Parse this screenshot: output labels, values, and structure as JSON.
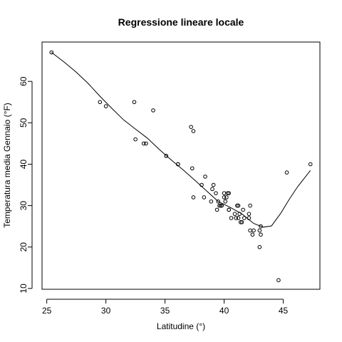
{
  "chart_data": {
    "type": "scatter",
    "title": "Regressione lineare locale",
    "xlabel": "Latitudine (°)",
    "ylabel": "Temperatura media Gennaio (°F)",
    "xlim": [
      24.6,
      48.1
    ],
    "ylim": [
      9.8,
      69.5
    ],
    "xticks": [
      25,
      30,
      35,
      40,
      45
    ],
    "yticks": [
      10,
      20,
      30,
      40,
      50,
      60
    ],
    "points": [
      [
        25.4,
        67
      ],
      [
        29.5,
        55
      ],
      [
        30.0,
        54
      ],
      [
        32.4,
        55
      ],
      [
        32.5,
        46
      ],
      [
        33.2,
        45
      ],
      [
        33.4,
        45
      ],
      [
        34.0,
        53
      ],
      [
        35.1,
        42
      ],
      [
        35.1,
        42
      ],
      [
        36.1,
        40
      ],
      [
        36.1,
        40
      ],
      [
        37.2,
        49
      ],
      [
        37.4,
        48
      ],
      [
        37.3,
        39
      ],
      [
        37.4,
        32
      ],
      [
        38.1,
        35
      ],
      [
        38.4,
        37
      ],
      [
        38.3,
        32
      ],
      [
        38.9,
        31
      ],
      [
        39.0,
        34
      ],
      [
        39.1,
        35
      ],
      [
        39.3,
        33
      ],
      [
        39.6,
        30
      ],
      [
        39.4,
        29
      ],
      [
        39.5,
        31
      ],
      [
        39.7,
        30
      ],
      [
        39.8,
        30
      ],
      [
        40.0,
        33
      ],
      [
        40.0,
        32
      ],
      [
        40.2,
        32
      ],
      [
        40.3,
        33
      ],
      [
        40.4,
        33
      ],
      [
        40.1,
        31
      ],
      [
        40.4,
        29
      ],
      [
        40.4,
        29
      ],
      [
        40.6,
        27
      ],
      [
        40.9,
        28
      ],
      [
        41.0,
        27
      ],
      [
        41.2,
        27
      ],
      [
        41.1,
        30
      ],
      [
        41.2,
        30
      ],
      [
        41.3,
        28
      ],
      [
        41.4,
        26
      ],
      [
        41.5,
        26
      ],
      [
        41.6,
        29
      ],
      [
        41.7,
        27
      ],
      [
        42.1,
        28
      ],
      [
        42.1,
        27
      ],
      [
        42.2,
        30
      ],
      [
        42.2,
        24
      ],
      [
        42.4,
        23
      ],
      [
        42.5,
        24
      ],
      [
        43.0,
        20
      ],
      [
        43.0,
        24
      ],
      [
        43.1,
        23
      ],
      [
        43.1,
        25
      ],
      [
        44.6,
        12
      ],
      [
        45.3,
        38
      ],
      [
        47.3,
        40
      ]
    ],
    "fit_line": {
      "x": [
        25.4,
        26.5,
        27.5,
        28.5,
        29.5,
        30.5,
        31.5,
        32.5,
        33.5,
        34.5,
        35.5,
        36.5,
        37.5,
        38.5,
        39.5,
        40.5,
        41.5,
        42.5,
        43.3,
        44.0,
        44.8,
        45.5,
        46.2,
        47.3
      ],
      "y": [
        67,
        64.6,
        62.2,
        59.5,
        56.4,
        53.5,
        50.7,
        48.5,
        46.3,
        43.6,
        41.1,
        38.7,
        36.2,
        33.6,
        31.0,
        29.6,
        28.0,
        25.7,
        24.8,
        25.1,
        28.2,
        31.5,
        34.5,
        38.5
      ]
    }
  }
}
